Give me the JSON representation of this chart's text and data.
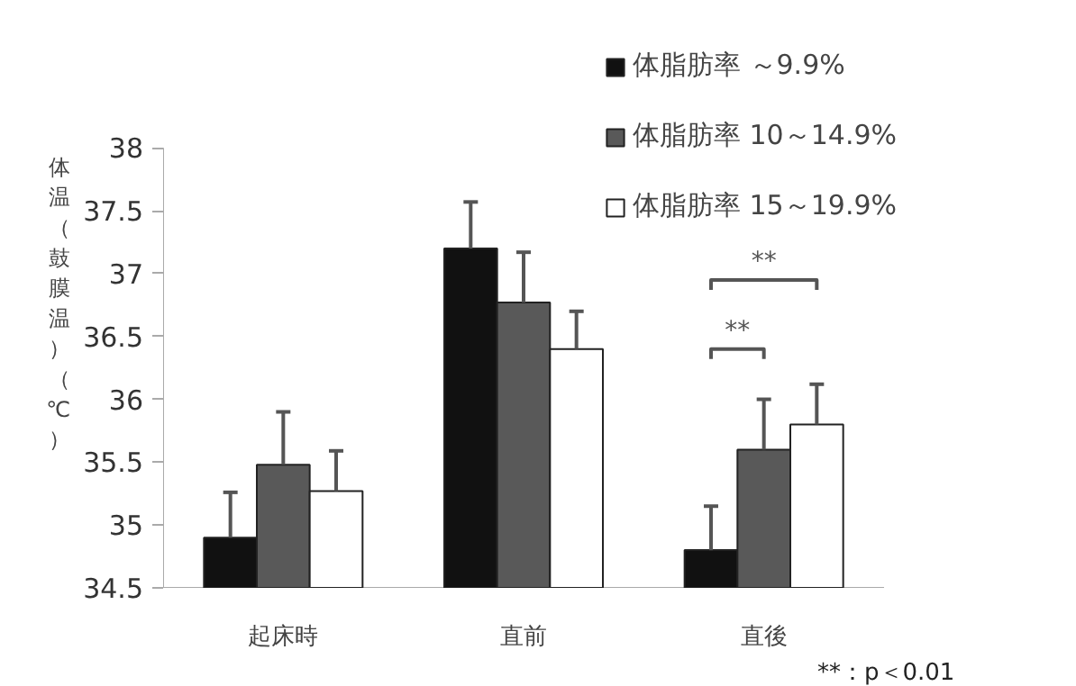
{
  "chart_data": {
    "type": "bar",
    "ylabel": "体温（鼓膜温）（℃）",
    "categories": [
      "起床時",
      "直前",
      "直後"
    ],
    "series": [
      {
        "name": "体脂肪率 ～9.9%",
        "color": "#111111",
        "values": [
          34.9,
          37.2,
          34.8
        ],
        "errors": [
          0.36,
          0.37,
          0.35
        ]
      },
      {
        "name": "体脂肪率 10～14.9%",
        "color": "#595959",
        "values": [
          35.48,
          36.77,
          35.6
        ],
        "errors": [
          0.42,
          0.4,
          0.4
        ]
      },
      {
        "name": "体脂肪率 15～19.9%",
        "color": "#ffffff",
        "values": [
          35.27,
          36.4,
          35.8
        ],
        "errors": [
          0.32,
          0.3,
          0.32
        ]
      }
    ],
    "ylim": [
      34.5,
      38
    ],
    "yticks": [
      34.5,
      35,
      35.5,
      36,
      36.5,
      37,
      37.5,
      38
    ],
    "grid": false,
    "legend": "top right",
    "annotations": [
      "**",
      "**",
      "**：p＜0.01"
    ]
  }
}
